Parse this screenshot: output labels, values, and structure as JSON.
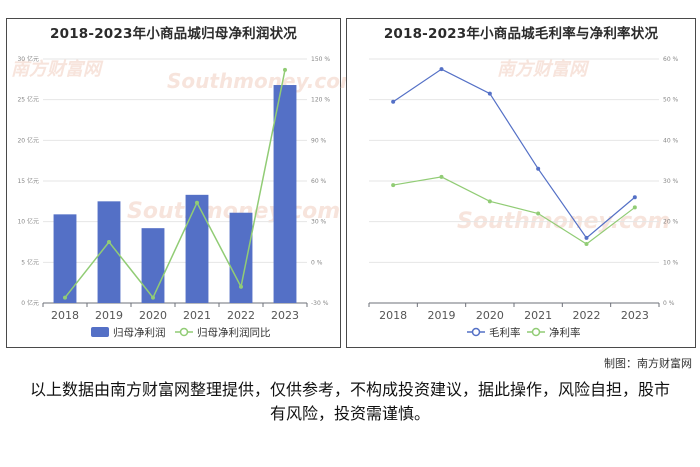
{
  "watermark": {
    "cn": "南方财富网",
    "en": "Southmoney.com",
    "color": "#f2cfc0"
  },
  "caption": "制图：南方财富网",
  "disclaimer": "以上数据由南方财富网整理提供，仅供参考，不构成投资建议，据此操作，风险自担，股市有风险，投资需谨慎。",
  "chart_data": [
    {
      "type": "bar+line",
      "title": "2018-2023年小商品城归母净利润状况",
      "categories": [
        "2018",
        "2019",
        "2020",
        "2021",
        "2022",
        "2023"
      ],
      "y_left": {
        "ticks": [
          "0 亿元",
          "5 亿元",
          "10 亿元",
          "15 亿元",
          "20 亿元",
          "25 亿元",
          "30 亿元"
        ],
        "range": [
          0,
          30
        ]
      },
      "y_right": {
        "ticks": [
          "-30 %",
          "0 %",
          "30 %",
          "60 %",
          "90 %",
          "120 %",
          "150 %"
        ],
        "range": [
          -30,
          150
        ]
      },
      "series": [
        {
          "name": "归母净利润",
          "kind": "bar",
          "axis": "left",
          "color": "#5470c6",
          "values": [
            10.9,
            12.5,
            9.2,
            13.3,
            11.1,
            26.8
          ]
        },
        {
          "name": "归母净利润同比",
          "kind": "line",
          "axis": "right",
          "color": "#91cc75",
          "values": [
            -26,
            15,
            -26,
            44,
            -18,
            142
          ]
        }
      ],
      "legend": "bottom-center"
    },
    {
      "type": "line",
      "title": "2018-2023年小商品城毛利率与净利率状况",
      "categories": [
        "2018",
        "2019",
        "2020",
        "2021",
        "2022",
        "2023"
      ],
      "y_range": [
        0,
        60
      ],
      "y_ticks": [
        "0 %",
        "10 %",
        "20 %",
        "30 %",
        "40 %",
        "50 %",
        "60 %"
      ],
      "series": [
        {
          "name": "毛利率",
          "color": "#5470c6",
          "values": [
            49.5,
            57.5,
            51.5,
            33,
            16,
            26
          ]
        },
        {
          "name": "净利率",
          "color": "#91cc75",
          "values": [
            29,
            31,
            25,
            22,
            14.5,
            23.5
          ]
        }
      ],
      "legend": "bottom-center"
    }
  ]
}
